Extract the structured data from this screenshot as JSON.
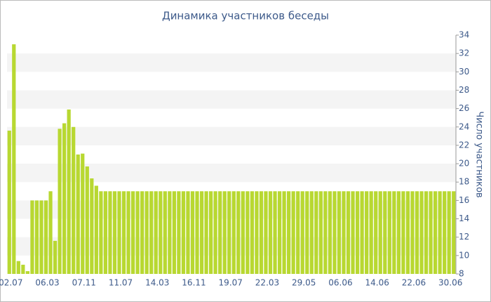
{
  "chart_data": {
    "type": "bar",
    "title": "Динамика участников беседы",
    "y_axis_label": "Число участников",
    "categories": [
      "02.07",
      null,
      null,
      null,
      null,
      null,
      null,
      null,
      "06.03",
      null,
      null,
      null,
      null,
      null,
      null,
      null,
      "07.11",
      null,
      null,
      null,
      null,
      null,
      null,
      null,
      "11.07",
      null,
      null,
      null,
      null,
      null,
      null,
      null,
      "14.03",
      null,
      null,
      null,
      null,
      null,
      null,
      null,
      "16.11",
      null,
      null,
      null,
      null,
      null,
      null,
      null,
      "19.07",
      null,
      null,
      null,
      null,
      null,
      null,
      null,
      "22.03",
      null,
      null,
      null,
      null,
      null,
      null,
      null,
      "29.05",
      null,
      null,
      null,
      null,
      null,
      null,
      null,
      "06.06",
      null,
      null,
      null,
      null,
      null,
      null,
      null,
      "14.06",
      null,
      null,
      null,
      null,
      null,
      null,
      null,
      "22.06",
      null,
      null,
      null,
      null,
      null,
      null,
      null,
      "30.06",
      null
    ],
    "values": [
      23.6,
      33,
      9.4,
      9,
      8.3,
      16,
      16,
      16,
      16,
      17,
      11.6,
      23.8,
      24.4,
      25.9,
      24,
      21,
      21.1,
      19.7,
      18.4,
      17.6,
      17,
      17,
      17,
      17,
      17,
      17,
      17,
      17,
      17,
      17,
      17,
      17,
      17,
      17,
      17,
      17,
      17,
      17,
      17,
      17,
      17,
      17,
      17,
      17,
      17,
      17,
      17,
      17,
      17,
      17,
      17,
      17,
      17,
      17,
      17,
      17,
      17,
      17,
      17,
      17,
      17,
      17,
      17,
      17,
      17,
      17,
      17,
      17,
      17,
      17,
      17,
      17,
      17,
      17,
      17,
      17,
      17,
      17,
      17,
      17,
      17,
      17,
      17,
      17,
      17,
      17,
      17,
      17,
      17,
      17,
      17,
      17,
      17,
      17,
      17,
      17,
      17,
      17
    ],
    "color": "#b8d831",
    "ylim": [
      8,
      34
    ],
    "yticks": [
      8,
      10,
      12,
      14,
      16,
      18,
      20,
      22,
      24,
      26,
      28,
      30,
      32,
      34
    ],
    "grid": true
  }
}
